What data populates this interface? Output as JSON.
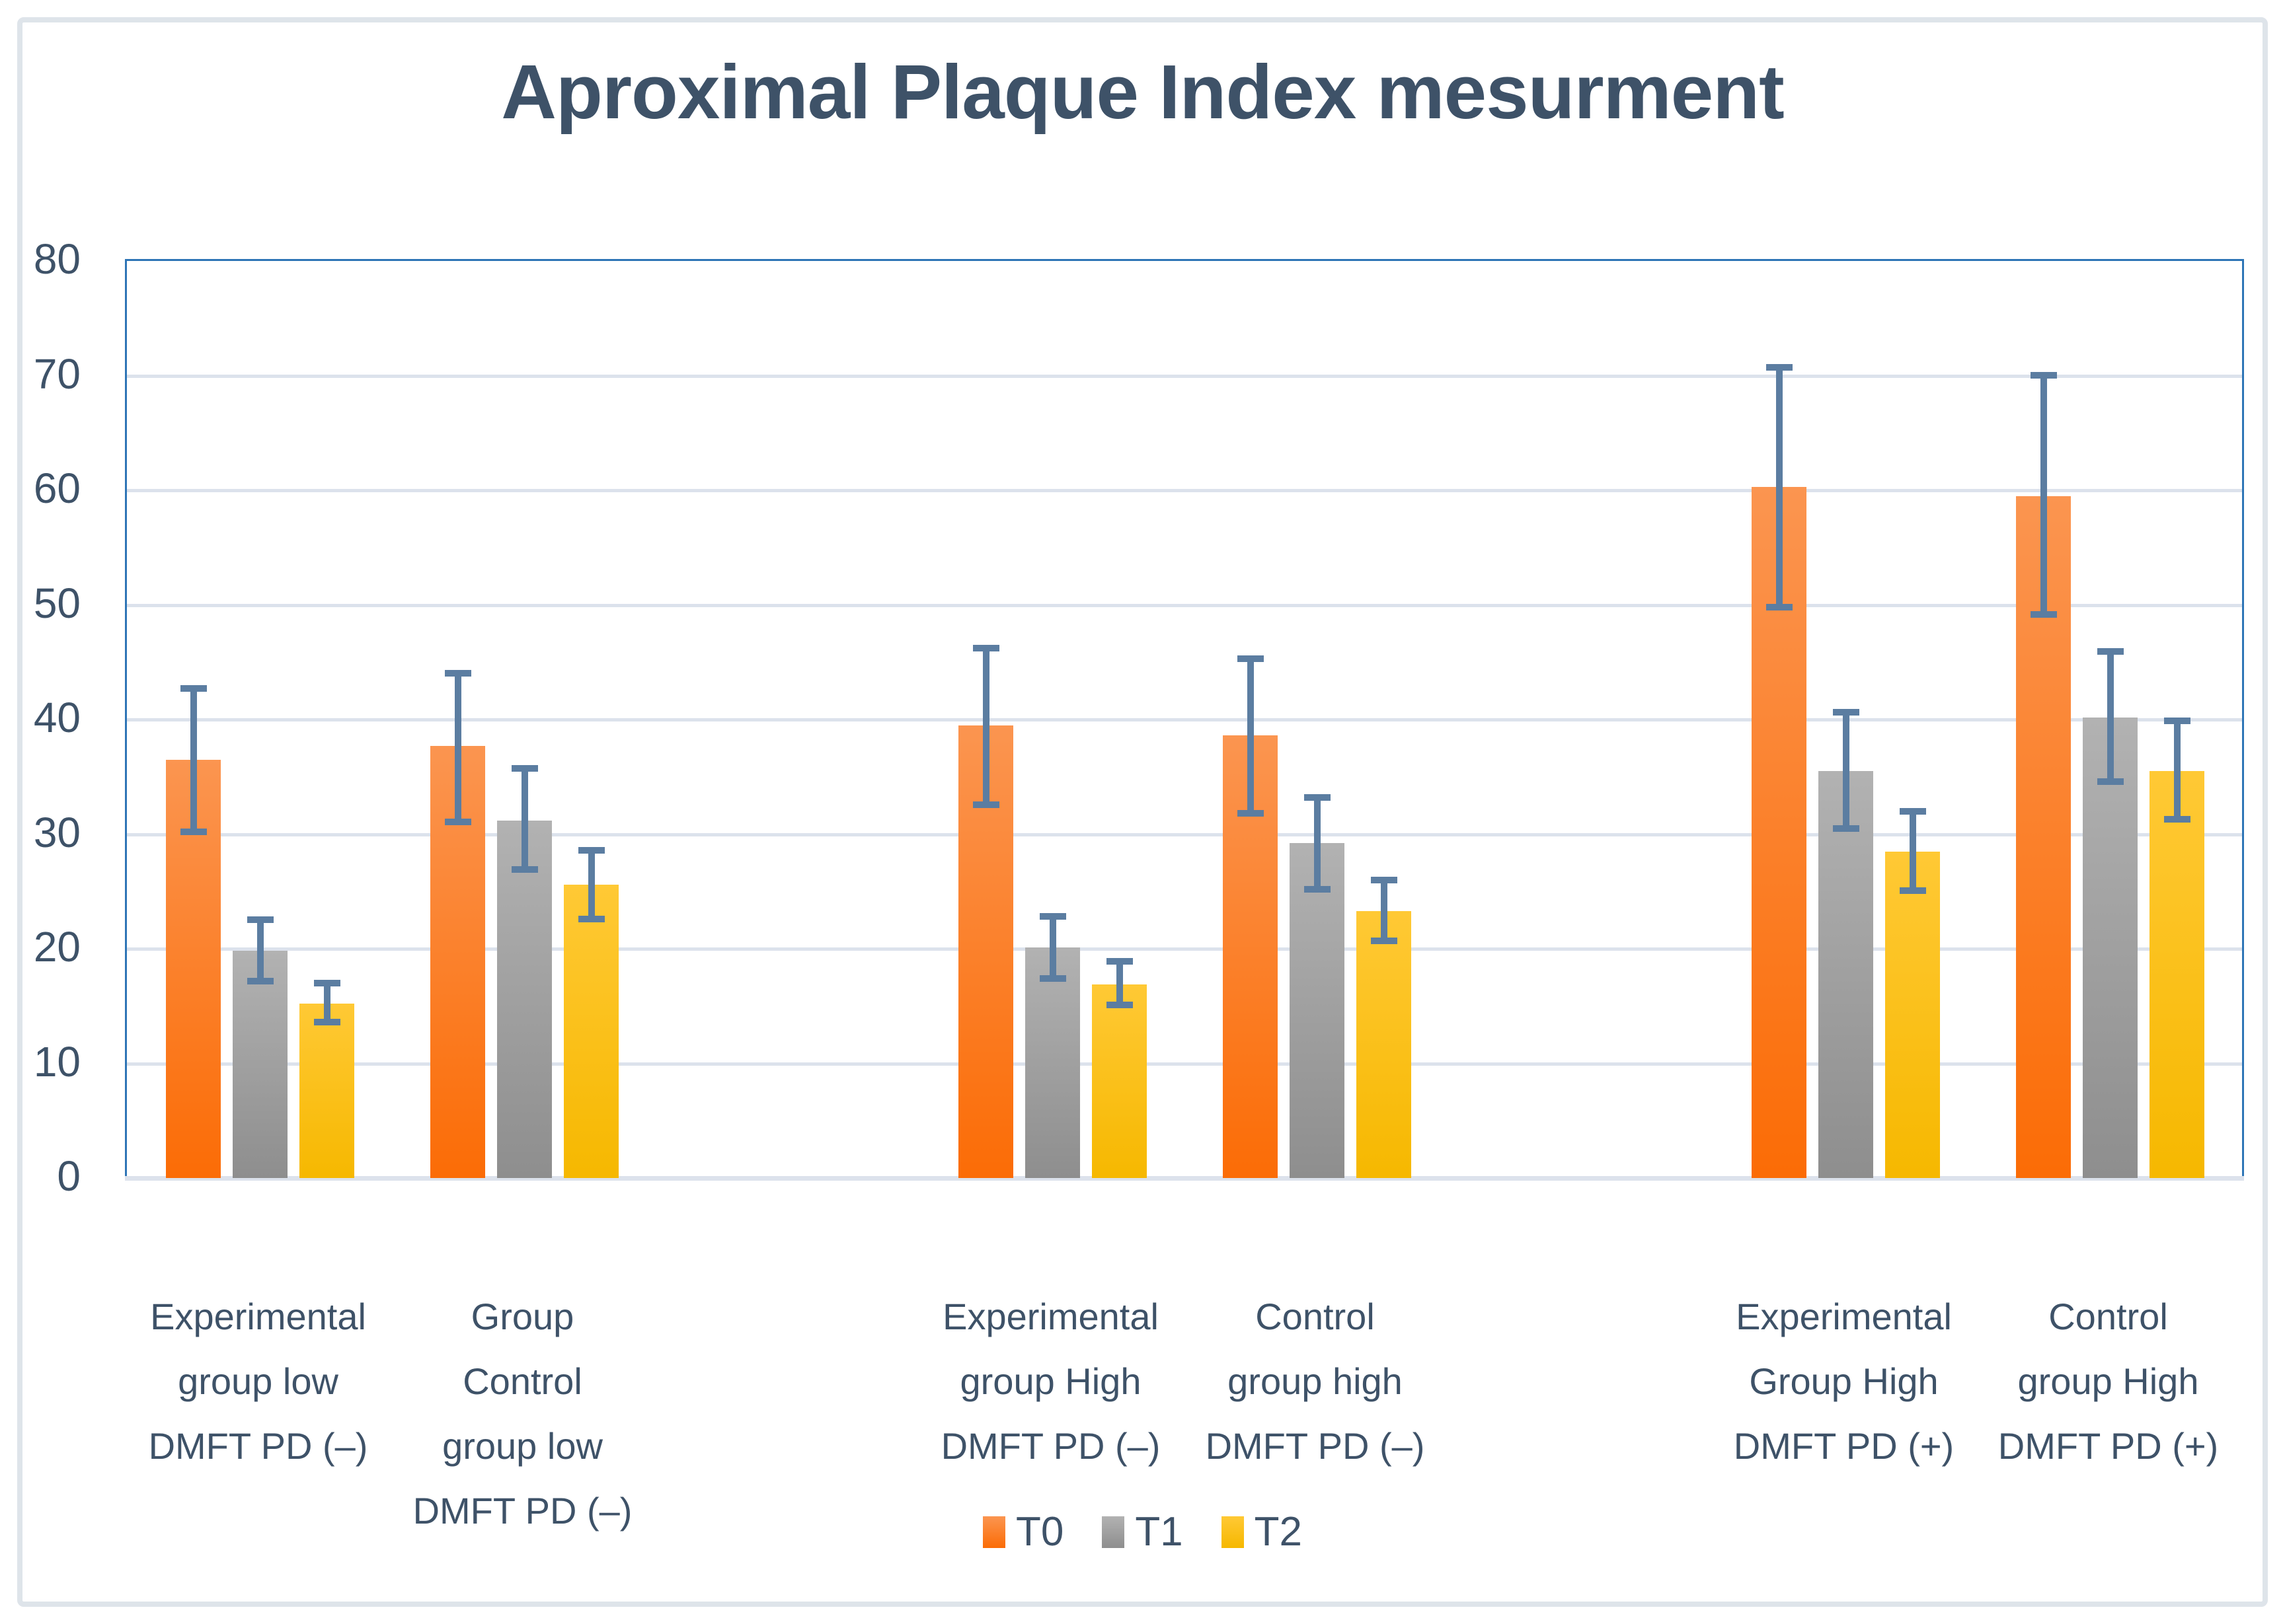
{
  "title": "Aproximal Plaque Index mesurment",
  "y_axis": {
    "min": 0,
    "max": 80,
    "ticks": [
      80,
      70,
      60,
      50,
      40,
      30,
      20,
      10,
      0
    ]
  },
  "legend": {
    "position": "bottom",
    "items": [
      {
        "label": "T0"
      },
      {
        "label": "T1"
      },
      {
        "label": "T2"
      }
    ]
  },
  "colors": {
    "title_text": "#3E5268",
    "axis_text": "#3E5268",
    "plot_border": "#2E75B6",
    "gridline": "#DCE2EC",
    "baseline": "#DCE2EC",
    "error_bar": "#5B7DA1",
    "outer_border": "#DEE4EA",
    "series": {
      "T0": {
        "top": "#FB9550",
        "bottom": "#FB6C06"
      },
      "T1": {
        "top": "#B2B2B2",
        "bottom": "#8E8E8E"
      },
      "T2": {
        "top": "#FFC935",
        "bottom": "#F6B800"
      }
    }
  },
  "chart_data": {
    "type": "bar",
    "title": "Aproximal Plaque Index mesurment",
    "xlabel": "",
    "ylabel": "",
    "ylim": [
      0,
      80
    ],
    "grid": true,
    "legend_position": "bottom",
    "error_bars": true,
    "categories": [
      "Experimental group low DMFT PD (–)",
      "Group Control group low DMFT PD (–)",
      "Experimental group High DMFT PD (–)",
      "Control group high DMFT PD (–)",
      "Experimental Group High DMFT PD (+)",
      "Control group High DMFT PD (+)"
    ],
    "category_label_lines": [
      [
        "Experimental",
        "group low",
        "DMFT PD (–)"
      ],
      [
        "Group",
        "Control",
        "group low",
        "DMFT PD (–)"
      ],
      [
        "Experimental",
        "group High",
        "DMFT PD (–)"
      ],
      [
        "Control",
        "group high",
        "DMFT PD (–)"
      ],
      [
        "Experimental",
        "Group High",
        "DMFT PD (+)"
      ],
      [
        "Control",
        "group High",
        "DMFT PD (+)"
      ]
    ],
    "series": [
      {
        "name": "T0",
        "values": [
          36.5,
          37.7,
          39.5,
          38.6,
          60.3,
          59.5
        ],
        "error_high": [
          43.0,
          44.3,
          46.5,
          45.6,
          71.0,
          70.3
        ],
        "error_low": [
          29.9,
          30.8,
          32.3,
          31.5,
          49.5,
          48.9
        ]
      },
      {
        "name": "T1",
        "values": [
          19.8,
          31.2,
          20.1,
          29.2,
          35.5,
          40.2
        ],
        "error_high": [
          22.8,
          36.0,
          23.1,
          33.5,
          40.9,
          46.2
        ],
        "error_low": [
          16.9,
          26.6,
          17.1,
          24.9,
          30.2,
          34.3
        ]
      },
      {
        "name": "T2",
        "values": [
          15.2,
          25.6,
          16.9,
          23.3,
          28.5,
          35.5
        ],
        "error_high": [
          17.3,
          28.9,
          19.2,
          26.3,
          32.3,
          40.2
        ],
        "error_low": [
          13.3,
          22.3,
          14.8,
          20.4,
          24.8,
          31.0
        ]
      }
    ]
  }
}
